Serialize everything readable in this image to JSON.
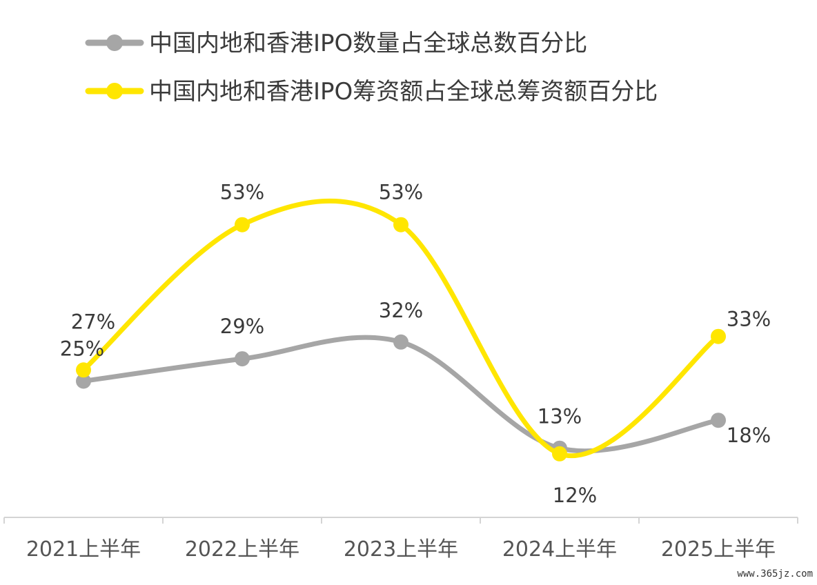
{
  "chart_data": {
    "type": "line",
    "categories": [
      "2021上半年",
      "2022上半年",
      "2023上半年",
      "2024上半年",
      "2025上半年"
    ],
    "series": [
      {
        "name": "中国内地和香港IPO数量占全球总数百分比",
        "values": [
          25,
          29,
          32,
          13,
          18
        ],
        "labels": [
          "25%",
          "29%",
          "32%",
          "13%",
          "18%"
        ],
        "color": "#a6a6a6"
      },
      {
        "name": "中国内地和香港IPO筹资额占全球总筹资额百分比",
        "values": [
          27,
          53,
          53,
          12,
          33
        ],
        "labels": [
          "27%",
          "53%",
          "53%",
          "12%",
          "33%"
        ],
        "color": "#ffe600"
      }
    ],
    "legend_position": "top-left",
    "smooth": true,
    "grid": false
  },
  "watermark": "www.365jz.com"
}
